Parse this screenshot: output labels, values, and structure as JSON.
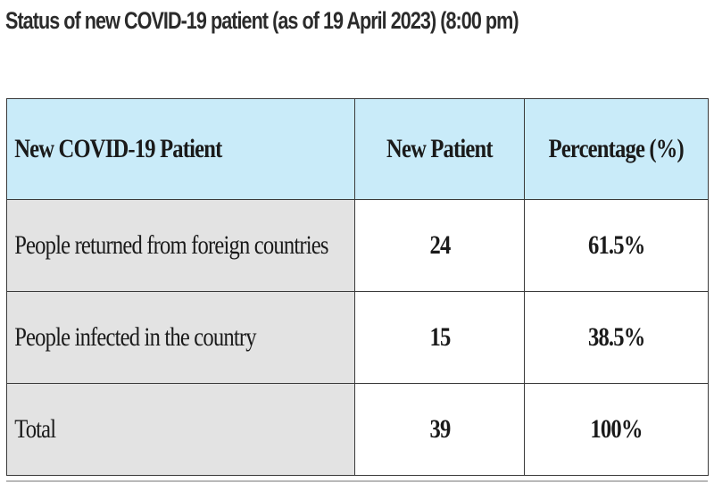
{
  "title": "Status of new COVID-19 patient (as of 19 April 2023) (8:00 pm)",
  "table": {
    "headers": [
      "New COVID-19 Patient",
      "New Patient",
      "Percentage (%)"
    ],
    "rows": [
      {
        "label": "People returned from foreign countries",
        "new_patient": "24",
        "percentage": "61.5%"
      },
      {
        "label": "People infected in the country",
        "new_patient": "15",
        "percentage": "38.5%"
      },
      {
        "label": "Total",
        "new_patient": "39",
        "percentage": "100%"
      }
    ]
  },
  "colors": {
    "header_background": "#c9ebf9",
    "label_column_background": "#e3e3e3",
    "border": "#3a3a3a"
  }
}
